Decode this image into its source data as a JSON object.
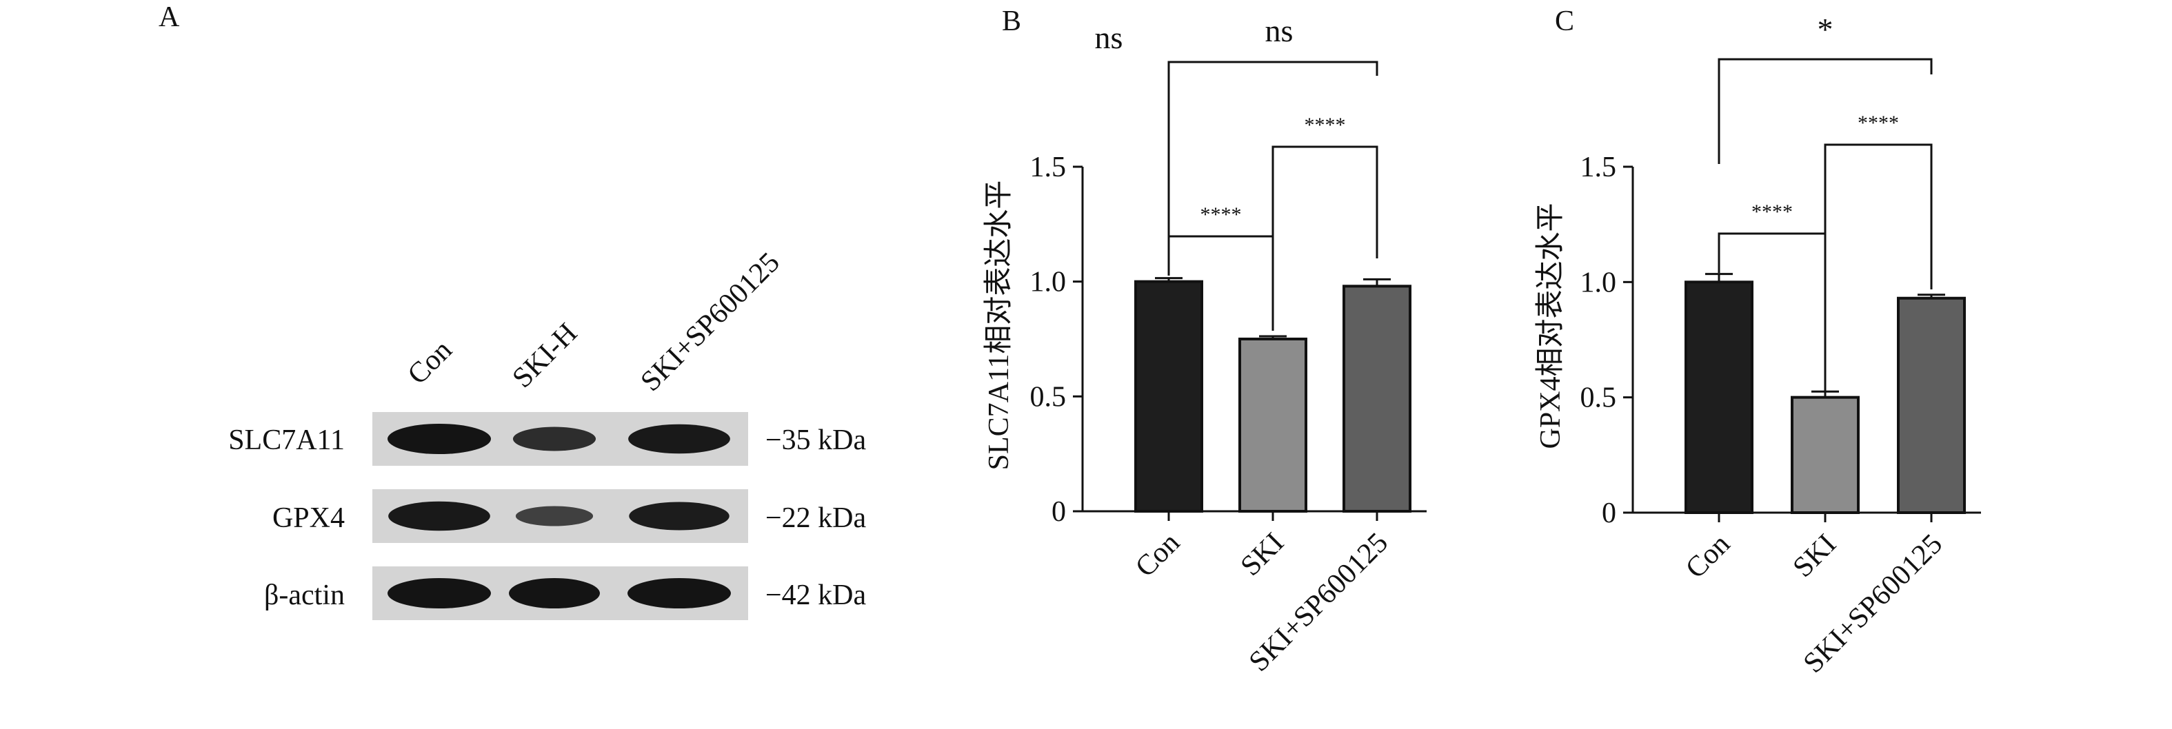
{
  "figure": {
    "panel_letters": [
      "A",
      "B",
      "C"
    ],
    "western_blot": {
      "lane_labels": [
        "Con",
        "SKI-H",
        "SKI+SP600125"
      ],
      "rows": [
        {
          "protein": "SLC7A11",
          "size": "−35 kDa",
          "band_intensity": [
            1.0,
            0.7,
            0.95
          ]
        },
        {
          "protein": "GPX4",
          "size": "−22 kDa",
          "band_intensity": [
            0.95,
            0.5,
            0.9
          ]
        },
        {
          "protein": "β-actin",
          "size": "−42 kDa",
          "band_intensity": [
            1.0,
            1.0,
            1.0
          ]
        }
      ]
    }
  },
  "chart_data": [
    {
      "panel": "B",
      "type": "bar",
      "categories": [
        "Con",
        "SKI",
        "SKI+SP600125"
      ],
      "values": [
        1.0,
        0.75,
        0.98
      ],
      "errors": [
        0.015,
        0.012,
        0.03
      ],
      "bar_colors": [
        "#1e1e1e",
        "#8c8c8c",
        "#5f5f5f"
      ],
      "ylabel": "SLC7A11相对表达水平",
      "xlabel": "",
      "ylim": [
        0,
        1.5
      ],
      "yticks": [
        0,
        0.5,
        1.0,
        1.5
      ],
      "ytick_labels": [
        "0",
        "0.5",
        "1.0",
        "1.5"
      ],
      "significance": [
        {
          "from": 0,
          "to": 1,
          "label": "****"
        },
        {
          "from": 1,
          "to": 2,
          "label": "****"
        },
        {
          "from": 0,
          "to": 2,
          "label": "ns"
        }
      ],
      "extra_annotation": "ns"
    },
    {
      "panel": "C",
      "type": "bar",
      "categories": [
        "Con",
        "SKI",
        "SKI+SP600125"
      ],
      "values": [
        1.0,
        0.5,
        0.93
      ],
      "errors": [
        0.035,
        0.025,
        0.015
      ],
      "bar_colors": [
        "#1e1e1e",
        "#8c8c8c",
        "#5f5f5f"
      ],
      "ylabel": "GPX4相对表达水平",
      "xlabel": "",
      "ylim": [
        0,
        1.5
      ],
      "yticks": [
        0,
        0.5,
        1.0,
        1.5
      ],
      "ytick_labels": [
        "0",
        "0.5",
        "1.0",
        "1.5"
      ],
      "significance": [
        {
          "from": 0,
          "to": 1,
          "label": "****"
        },
        {
          "from": 1,
          "to": 2,
          "label": "****"
        },
        {
          "from": 0,
          "to": 2,
          "label": "*"
        }
      ]
    }
  ]
}
